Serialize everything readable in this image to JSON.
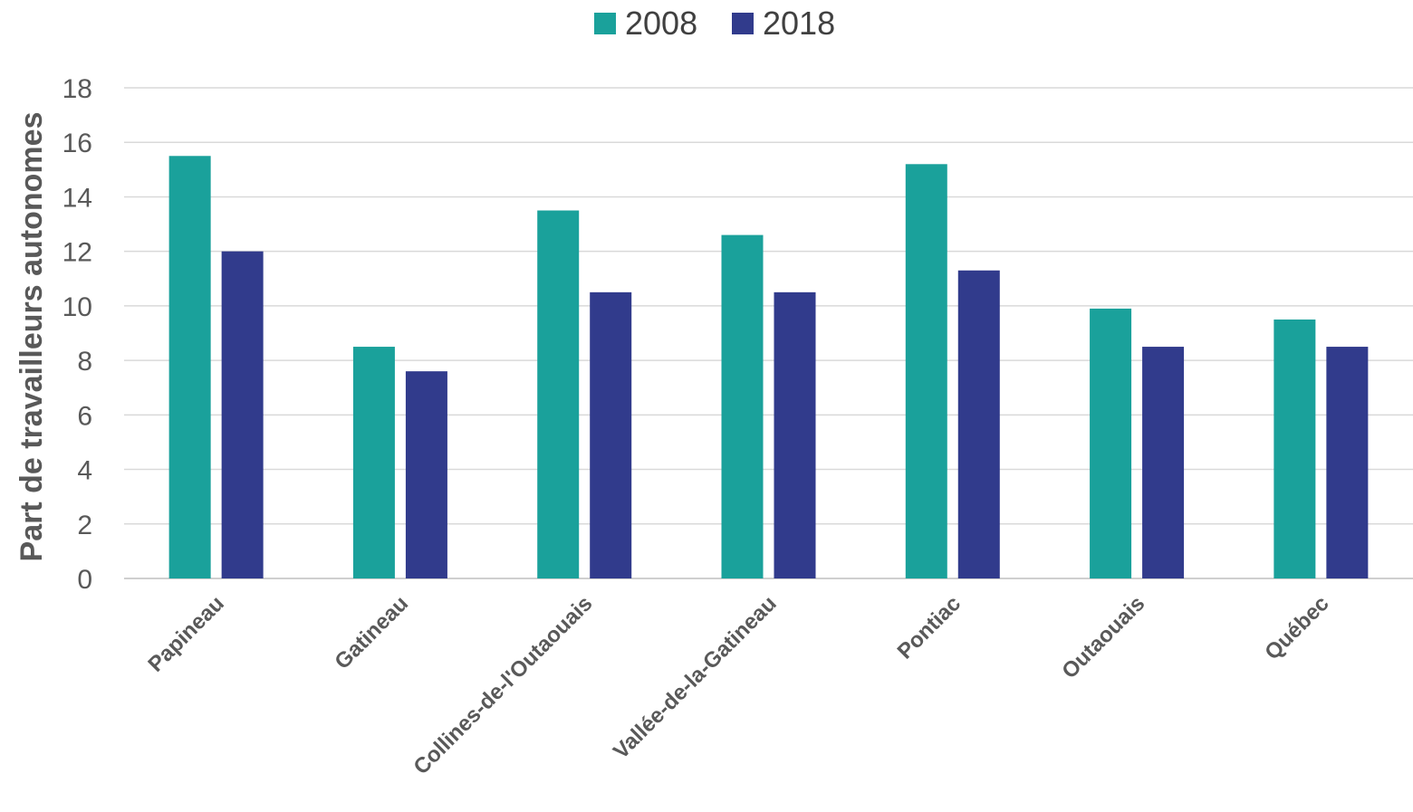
{
  "chart_data": {
    "type": "bar",
    "title": "",
    "xlabel": "",
    "ylabel": "Part de travailleurs autonomes",
    "ylim": [
      0,
      18
    ],
    "yticks": [
      0,
      2,
      4,
      6,
      8,
      10,
      12,
      14,
      16,
      18
    ],
    "grid": true,
    "legend_position": "top-center",
    "categories": [
      "Papineau",
      "Gatineau",
      "Collines-de-l'Outaouais",
      "Vallée-de-la-Gatineau",
      "Pontiac",
      "Outaouais",
      "Québec"
    ],
    "series": [
      {
        "name": "2008",
        "color": "#1aa19b",
        "values": [
          15.5,
          8.5,
          13.5,
          12.6,
          15.2,
          9.9,
          9.5
        ]
      },
      {
        "name": "2018",
        "color": "#313b8c",
        "values": [
          12.0,
          7.6,
          10.5,
          10.5,
          11.3,
          8.5,
          8.5
        ]
      }
    ]
  }
}
